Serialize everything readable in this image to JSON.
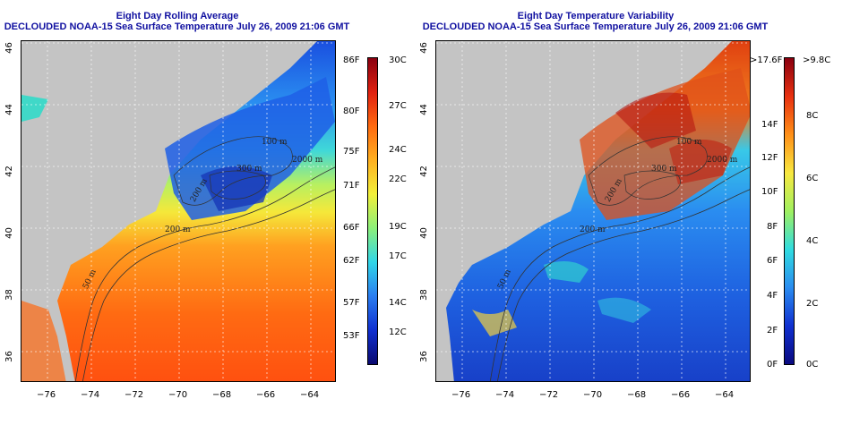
{
  "left_panel": {
    "title_line1": "Eight Day Rolling Average",
    "title_line2": "DECLOUDED NOAA-15 Sea Surface Temperature July 26, 2009 21:06 GMT",
    "colorbar_f_labels": [
      "86F",
      "80F",
      "75F",
      "71F",
      "66F",
      "62F",
      "57F",
      "53F"
    ],
    "colorbar_c_labels": [
      "30C",
      "27C",
      "24C",
      "22C",
      "19C",
      "17C",
      "14C",
      "12C"
    ],
    "contour_labels": [
      "100 m",
      "300 m",
      "200 m",
      "2000 m",
      "200 m",
      "50 m"
    ]
  },
  "right_panel": {
    "title_line1": "Eight Day Temperature Variability",
    "title_line2": "DECLOUDED NOAA-15 Sea Surface Temperature July 26, 2009 21:06 GMT",
    "colorbar_f_labels": [
      ">17.6F",
      "14F",
      "12F",
      "10F",
      "8F",
      "6F",
      "4F",
      "2F",
      "0F"
    ],
    "colorbar_c_labels": [
      ">9.8C",
      "8C",
      "6C",
      "4C",
      "2C",
      "0C"
    ],
    "contour_labels": [
      "100 m",
      "300 m",
      "200 m",
      "2000 m",
      "200 m",
      "50 m"
    ]
  },
  "axes": {
    "lat_ticks": [
      "46",
      "44",
      "42",
      "40",
      "38",
      "36"
    ],
    "lon_ticks": [
      "−76",
      "−74",
      "−72",
      "−70",
      "−68",
      "−66",
      "−64"
    ]
  },
  "colors": {
    "land": "#c4c4c4",
    "title": "#1010a0",
    "sst_scale": [
      "#0a0a70",
      "#1030d0",
      "#2a7df0",
      "#30d6e8",
      "#8cf07a",
      "#f2f03a",
      "#ffb020",
      "#ff6a10",
      "#e02010",
      "#8a0010"
    ],
    "var_scale": [
      "#0a0a80",
      "#1030d0",
      "#2a8cf0",
      "#30dce0",
      "#a0f060",
      "#f8e840",
      "#ff9018",
      "#e83010",
      "#8a0010"
    ]
  }
}
